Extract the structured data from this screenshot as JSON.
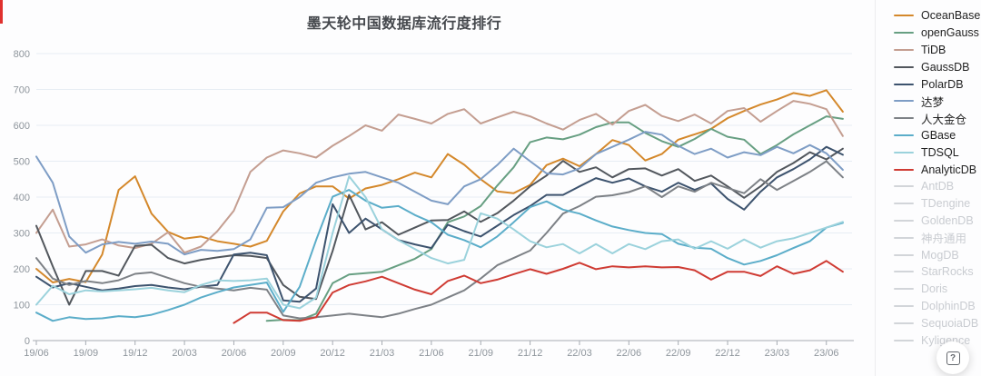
{
  "title": "墨天轮中国数据库流行度排行",
  "help_button": {
    "icon": "?"
  },
  "legend": {
    "inactive_color": "#d2d5d9",
    "active_text_color": "#1f1f1f",
    "inactive_text_color": "#c9ccd1"
  },
  "chart_data": {
    "type": "line",
    "title": "墨天轮中国数据库流行度排行",
    "grid": true,
    "legend_position": "right",
    "ylim": [
      0,
      800
    ],
    "y_tick_labels": [
      "0",
      "100",
      "200",
      "300",
      "400",
      "500",
      "600",
      "700",
      "800"
    ],
    "x_tick_labels": [
      "19/06",
      "19/09",
      "19/12",
      "20/03",
      "20/06",
      "20/09",
      "20/12",
      "21/03",
      "21/06",
      "21/09",
      "21/12",
      "22/03",
      "22/06",
      "22/09",
      "22/12",
      "23/03",
      "23/06"
    ],
    "months": [
      "19/06",
      "19/07",
      "19/08",
      "19/09",
      "19/10",
      "19/11",
      "19/12",
      "20/01",
      "20/02",
      "20/03",
      "20/04",
      "20/05",
      "20/06",
      "20/07",
      "20/08",
      "20/09",
      "20/10",
      "20/11",
      "20/12",
      "21/01",
      "21/02",
      "21/03",
      "21/04",
      "21/05",
      "21/06",
      "21/07",
      "21/08",
      "21/09",
      "21/10",
      "21/11",
      "21/12",
      "22/01",
      "22/02",
      "22/03",
      "22/04",
      "22/05",
      "22/06",
      "22/07",
      "22/08",
      "22/09",
      "22/10",
      "22/11",
      "22/12",
      "23/01",
      "23/02",
      "23/03",
      "23/04",
      "23/05",
      "23/06",
      "23/07"
    ],
    "axis_colors": {
      "grid": "#e7edf4",
      "axis_line": "#a6abb2",
      "tick_text": "#8e959c"
    },
    "series": [
      {
        "name": "OceanBase",
        "color": "#d4882b",
        "active": true,
        "values": [
          200,
          162,
          172,
          163,
          240,
          420,
          458,
          354,
          303,
          284,
          290,
          277,
          270,
          262,
          278,
          360,
          410,
          430,
          430,
          396,
          424,
          434,
          450,
          468,
          455,
          520,
          490,
          450,
          416,
          411,
          434,
          489,
          507,
          486,
          520,
          559,
          545,
          502,
          520,
          560,
          575,
          590,
          620,
          640,
          658,
          672,
          690,
          682,
          698,
          638
        ]
      },
      {
        "name": "openGauss",
        "color": "#679f82",
        "active": true,
        "values": [
          null,
          null,
          null,
          null,
          null,
          null,
          null,
          null,
          null,
          null,
          null,
          null,
          null,
          null,
          55,
          58,
          57,
          75,
          160,
          184,
          188,
          192,
          210,
          228,
          255,
          330,
          346,
          375,
          432,
          483,
          553,
          566,
          561,
          574,
          595,
          608,
          608,
          579,
          556,
          540,
          562,
          590,
          568,
          560,
          520,
          545,
          575,
          600,
          625,
          618
        ]
      },
      {
        "name": "TiDB",
        "color": "#c49e91",
        "active": true,
        "values": [
          300,
          365,
          262,
          268,
          282,
          265,
          258,
          270,
          302,
          245,
          262,
          305,
          362,
          470,
          510,
          530,
          522,
          510,
          543,
          570,
          600,
          585,
          630,
          618,
          605,
          632,
          645,
          605,
          622,
          638,
          625,
          605,
          588,
          615,
          632,
          602,
          640,
          657,
          626,
          612,
          630,
          605,
          640,
          648,
          610,
          640,
          668,
          660,
          645,
          570
        ]
      },
      {
        "name": "GaussDB",
        "color": "#52575d",
        "active": true,
        "values": [
          320,
          207,
          100,
          194,
          194,
          181,
          264,
          267,
          230,
          215,
          225,
          232,
          238,
          236,
          230,
          155,
          122,
          116,
          250,
          406,
          310,
          330,
          295,
          315,
          335,
          336,
          360,
          331,
          355,
          390,
          430,
          460,
          501,
          470,
          483,
          455,
          478,
          480,
          460,
          478,
          445,
          460,
          430,
          398,
          430,
          470,
          495,
          525,
          505,
          535
        ]
      },
      {
        "name": "PolarDB",
        "color": "#3d536e",
        "active": true,
        "values": [
          178,
          148,
          160,
          150,
          140,
          145,
          152,
          155,
          148,
          143,
          150,
          155,
          240,
          245,
          238,
          112,
          108,
          145,
          380,
          300,
          340,
          310,
          280,
          268,
          258,
          323,
          305,
          290,
          320,
          350,
          375,
          406,
          406,
          430,
          453,
          440,
          452,
          430,
          415,
          440,
          420,
          438,
          395,
          365,
          415,
          455,
          478,
          505,
          540,
          518
        ]
      },
      {
        "name": "达梦",
        "color": "#7e9dc5",
        "active": true,
        "values": [
          513,
          440,
          290,
          245,
          268,
          275,
          270,
          276,
          270,
          240,
          253,
          250,
          255,
          282,
          370,
          372,
          400,
          440,
          455,
          465,
          470,
          455,
          440,
          415,
          390,
          380,
          430,
          450,
          489,
          535,
          500,
          466,
          463,
          480,
          520,
          540,
          560,
          582,
          574,
          543,
          520,
          535,
          510,
          525,
          517,
          540,
          522,
          545,
          522,
          476
        ]
      },
      {
        "name": "人大金仓",
        "color": "#7d8186",
        "active": true,
        "values": [
          230,
          173,
          155,
          166,
          160,
          168,
          186,
          190,
          175,
          160,
          150,
          145,
          140,
          147,
          142,
          70,
          62,
          65,
          70,
          75,
          70,
          65,
          75,
          88,
          100,
          120,
          140,
          173,
          210,
          230,
          251,
          300,
          354,
          375,
          401,
          405,
          414,
          430,
          400,
          430,
          415,
          440,
          425,
          411,
          450,
          420,
          445,
          470,
          500,
          455
        ]
      },
      {
        "name": "GBase",
        "color": "#5badc9",
        "active": true,
        "values": [
          78,
          55,
          65,
          60,
          62,
          68,
          65,
          72,
          85,
          100,
          120,
          135,
          148,
          155,
          162,
          80,
          150,
          280,
          401,
          420,
          390,
          370,
          375,
          350,
          330,
          295,
          280,
          260,
          290,
          330,
          372,
          388,
          365,
          354,
          335,
          318,
          308,
          300,
          297,
          270,
          259,
          256,
          230,
          212,
          222,
          238,
          258,
          277,
          315,
          328
        ]
      },
      {
        "name": "TDSQL",
        "color": "#9bd2dc",
        "active": true,
        "values": [
          100,
          153,
          129,
          140,
          137,
          140,
          143,
          147,
          140,
          135,
          155,
          168,
          166,
          168,
          173,
          100,
          90,
          120,
          300,
          458,
          400,
          310,
          280,
          255,
          230,
          215,
          225,
          355,
          340,
          310,
          277,
          260,
          269,
          243,
          269,
          243,
          269,
          255,
          277,
          282,
          256,
          277,
          256,
          282,
          259,
          277,
          285,
          300,
          315,
          331
        ]
      },
      {
        "name": "AnalyticDB",
        "color": "#cf3b33",
        "active": true,
        "values": [
          null,
          null,
          null,
          null,
          null,
          null,
          null,
          null,
          null,
          null,
          null,
          null,
          49,
          78,
          78,
          57,
          55,
          65,
          134,
          155,
          165,
          178,
          160,
          142,
          129,
          166,
          181,
          160,
          170,
          185,
          199,
          186,
          200,
          217,
          199,
          207,
          204,
          207,
          204,
          205,
          196,
          170,
          192,
          192,
          180,
          207,
          186,
          196,
          222,
          192
        ]
      },
      {
        "name": "AntDB",
        "active": false,
        "values": []
      },
      {
        "name": "TDengine",
        "active": false,
        "values": []
      },
      {
        "name": "GoldenDB",
        "active": false,
        "values": []
      },
      {
        "name": "神舟通用",
        "active": false,
        "values": []
      },
      {
        "name": "MogDB",
        "active": false,
        "values": []
      },
      {
        "name": "StarRocks",
        "active": false,
        "values": []
      },
      {
        "name": "Doris",
        "active": false,
        "values": []
      },
      {
        "name": "DolphinDB",
        "active": false,
        "values": []
      },
      {
        "name": "SequoiaDB",
        "active": false,
        "values": []
      },
      {
        "name": "Kyligence",
        "active": false,
        "values": []
      }
    ]
  }
}
